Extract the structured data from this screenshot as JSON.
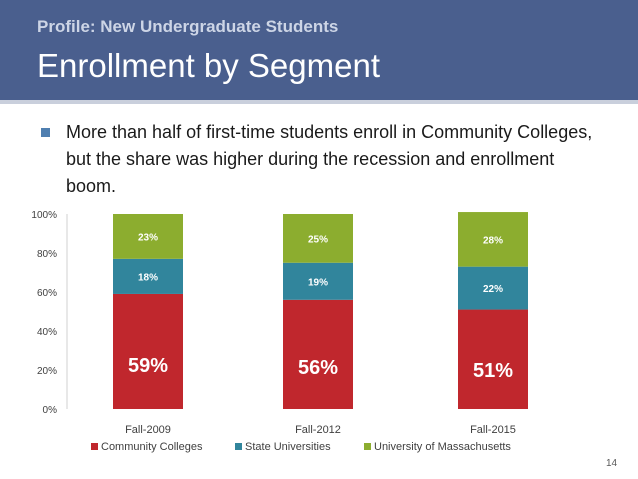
{
  "header": {
    "subtitle": "Profile: New Undergraduate Students",
    "title": "Enrollment by Segment"
  },
  "bullet": {
    "text": "More than half of first-time students enroll in Community Colleges, but the share was higher during the recession and enrollment boom."
  },
  "chart_data": {
    "type": "bar",
    "stacked": true,
    "categories": [
      "Fall-2009",
      "Fall-2012",
      "Fall-2015"
    ],
    "series": [
      {
        "name": "Community Colleges",
        "values": [
          59,
          56,
          51
        ],
        "labels": [
          "59%",
          "56%",
          "51%"
        ],
        "color": "#c0272d"
      },
      {
        "name": "State Universities",
        "values": [
          18,
          19,
          22
        ],
        "labels": [
          "18%",
          "19%",
          "22%"
        ],
        "color": "#31859c"
      },
      {
        "name": "University of Massachusetts",
        "values": [
          23,
          25,
          28
        ],
        "labels": [
          "23%",
          "25%",
          "28%"
        ],
        "color": "#8cad2f"
      }
    ],
    "yticks": [
      "0%",
      "20%",
      "40%",
      "60%",
      "80%",
      "100%"
    ],
    "ylim": [
      0,
      100
    ],
    "legend_position": "bottom",
    "grid": false
  },
  "page_number": "14"
}
